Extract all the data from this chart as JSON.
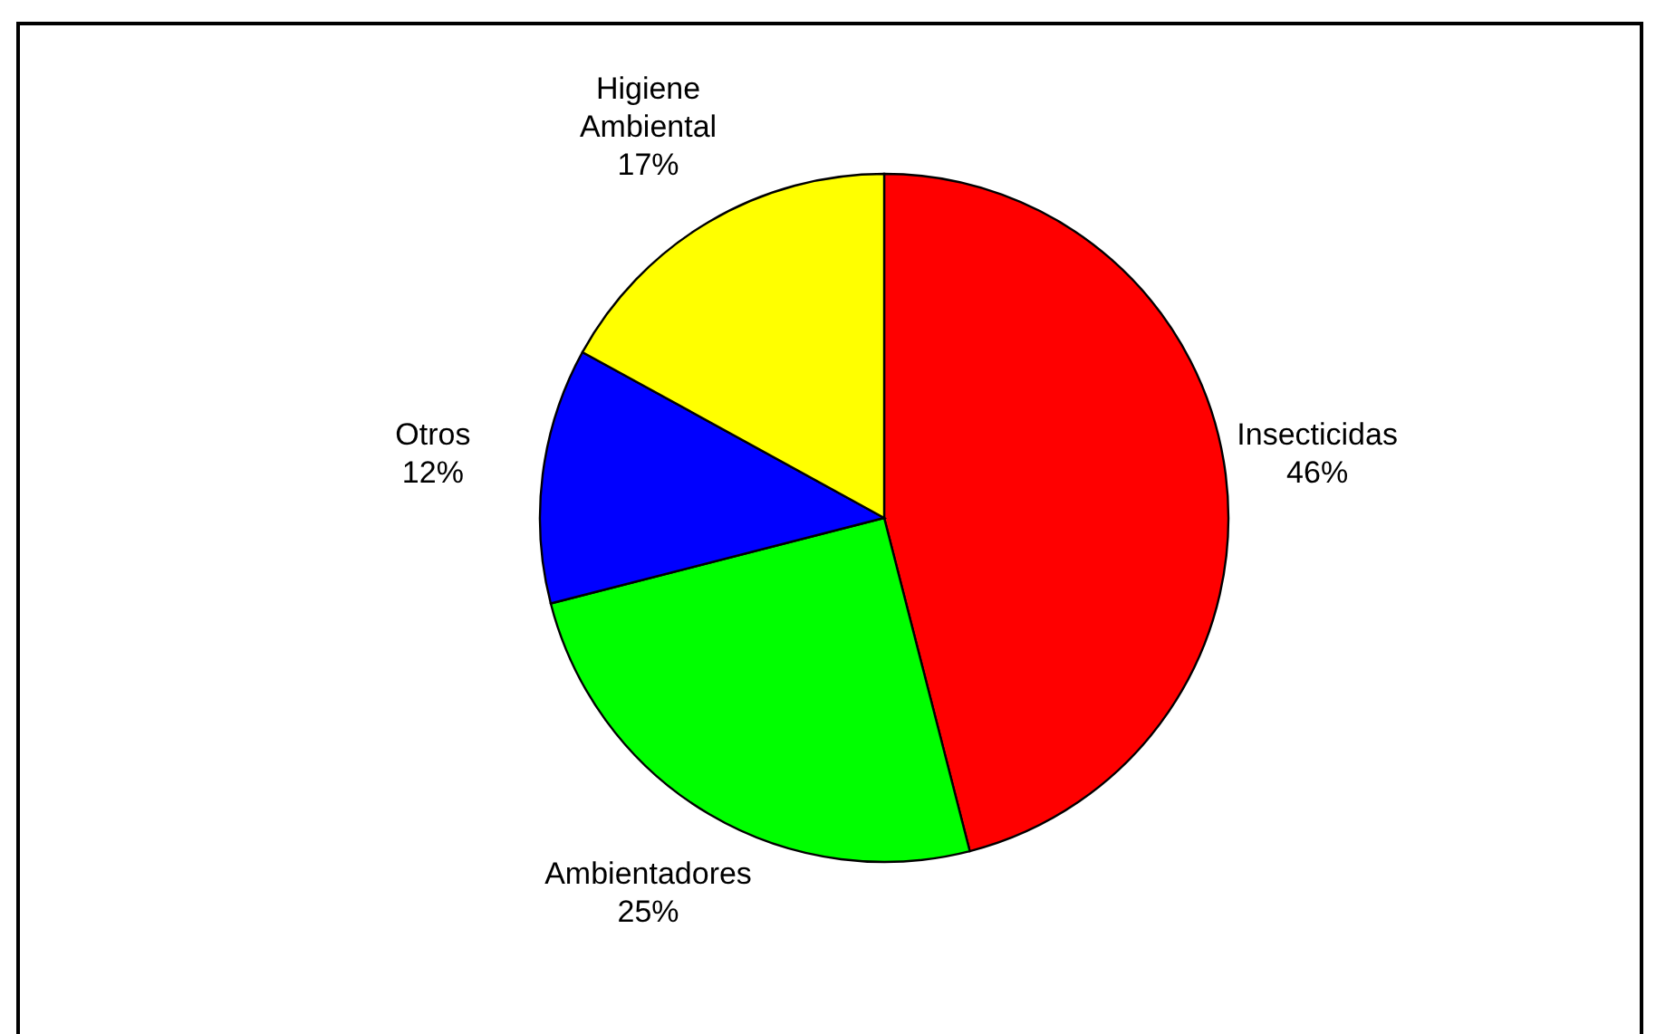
{
  "chart_data": {
    "type": "pie",
    "categories": [
      "Insecticidas",
      "Ambientadores",
      "Otros",
      "Higiene Ambiental"
    ],
    "values": [
      46,
      25,
      12,
      17
    ],
    "value_labels": [
      "46%",
      "25%",
      "12%",
      "17%"
    ],
    "colors": [
      "#ff0000",
      "#00ff00",
      "#0000ff",
      "#ffff00"
    ]
  }
}
